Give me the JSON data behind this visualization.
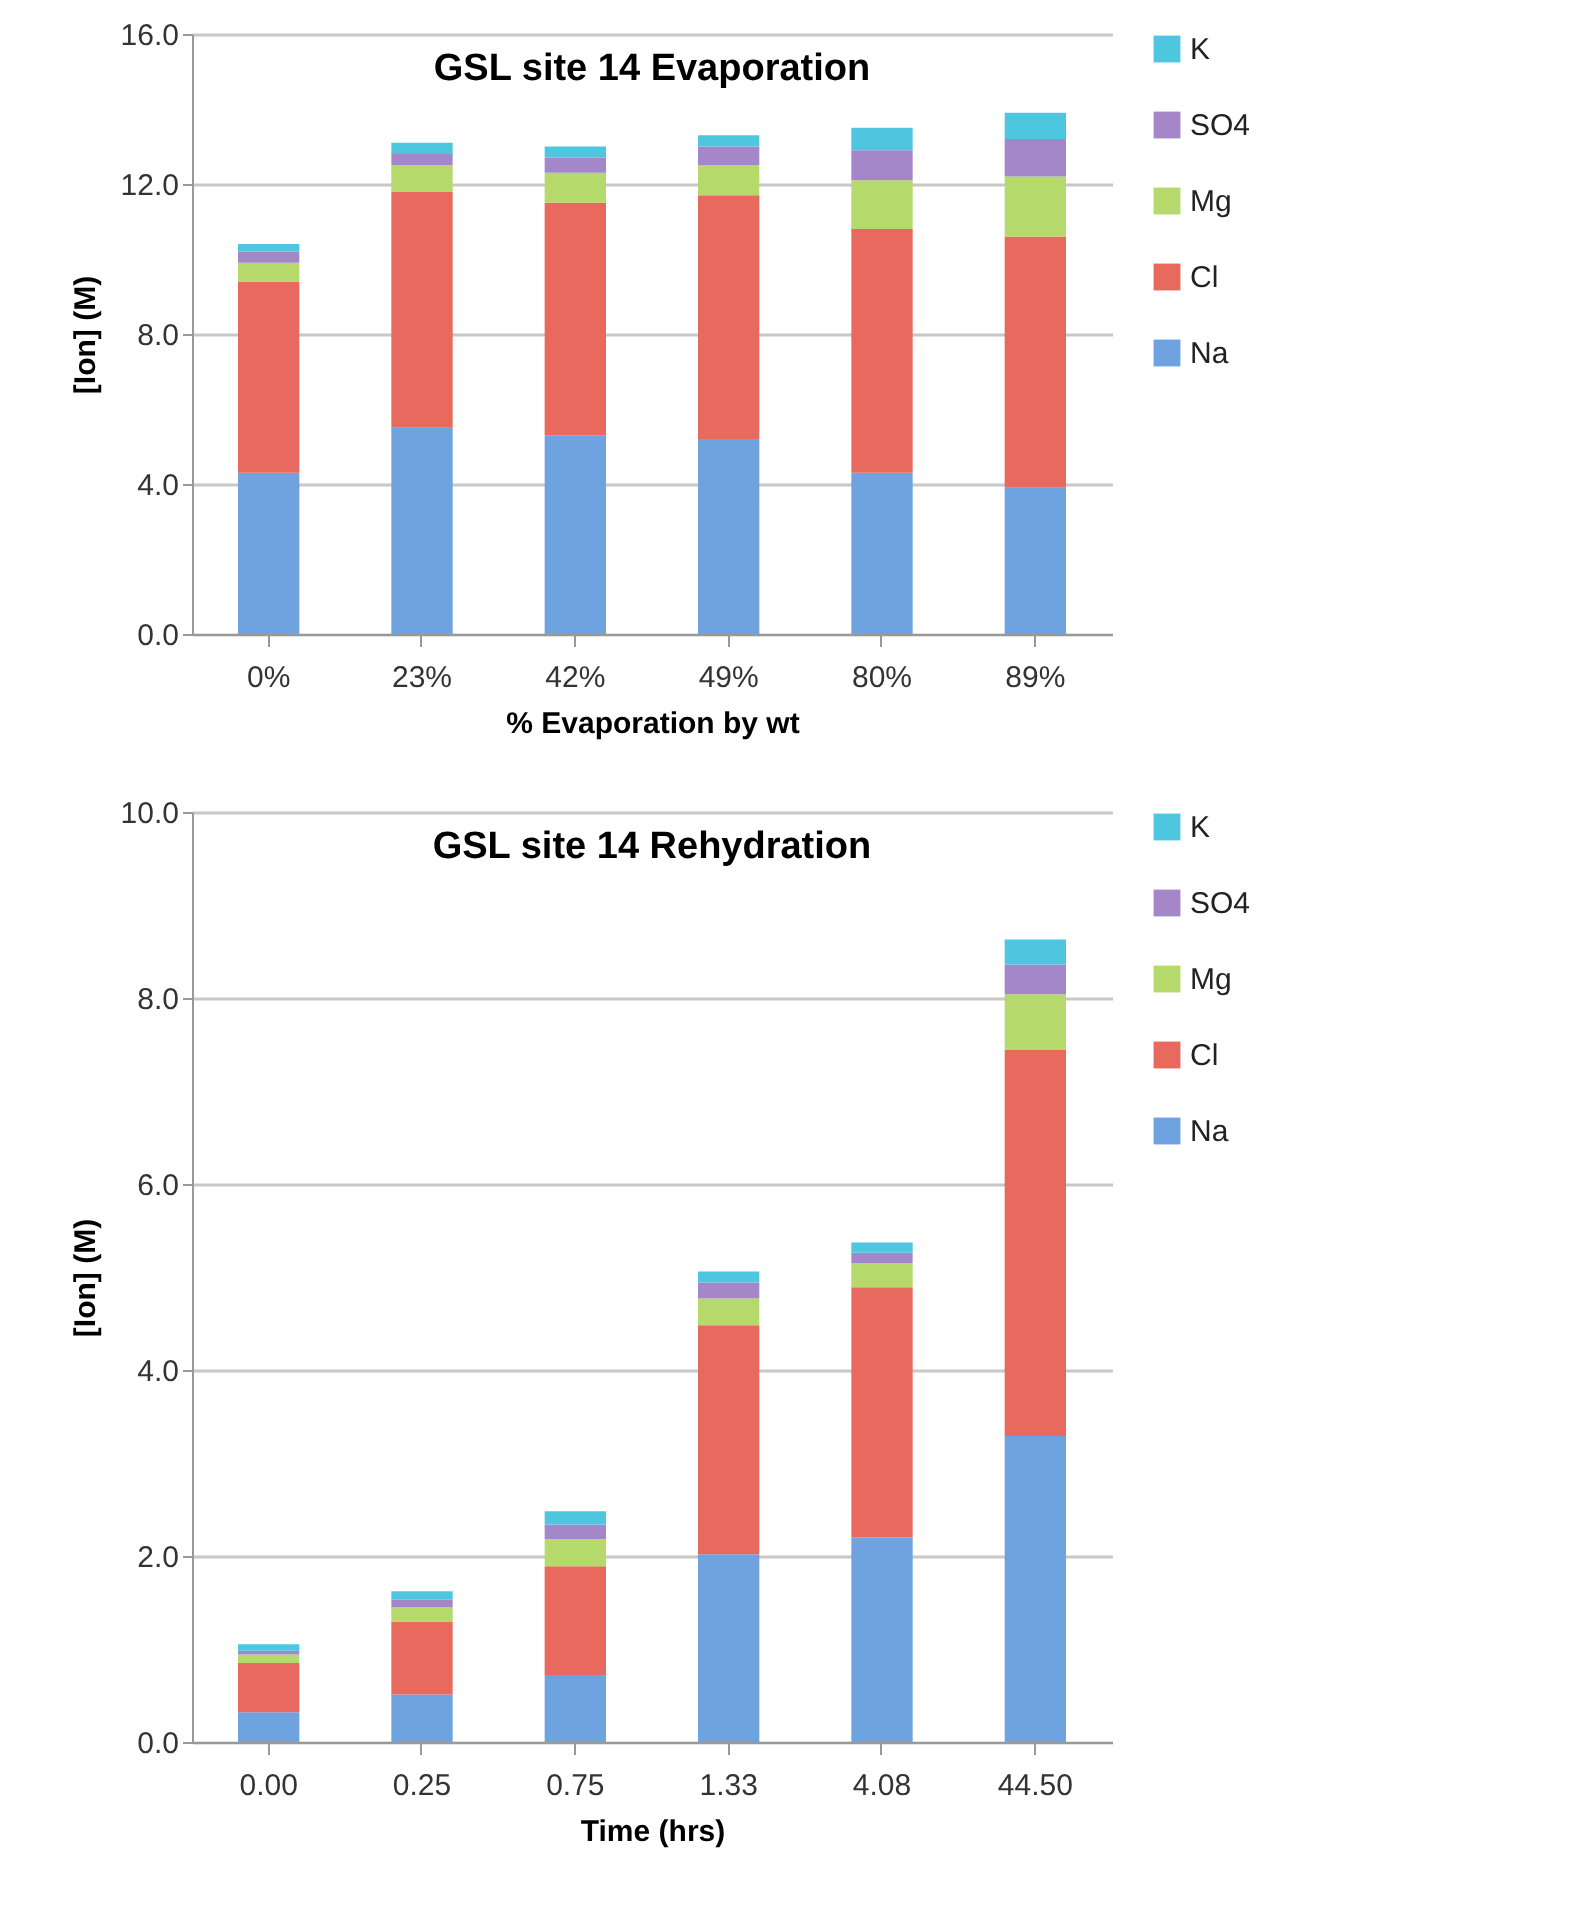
{
  "chart_data": [
    {
      "type": "bar",
      "title": "GSL site 14 Evaporation",
      "xlabel": "% Evaporation by wt",
      "ylabel": "[Ion] (M)",
      "stacked": true,
      "grid": "y",
      "legend": "right",
      "categories": [
        "0%",
        "23%",
        "42%",
        "49%",
        "80%",
        "89%"
      ],
      "ylim": [
        0,
        16
      ],
      "yticks": [
        {
          "value": 0,
          "label": "0.0"
        },
        {
          "value": 4,
          "label": "4.0"
        },
        {
          "value": 8,
          "label": "8.0"
        },
        {
          "value": 12,
          "label": "12.0"
        },
        {
          "value": 16,
          "label": "16.0"
        }
      ],
      "series": [
        {
          "name": "Na",
          "color": "#6fa3e0",
          "values": [
            4.3,
            5.5,
            5.3,
            5.2,
            4.3,
            3.9
          ]
        },
        {
          "name": "Cl",
          "color": "#e8695e",
          "values": [
            5.1,
            6.3,
            6.2,
            6.5,
            6.5,
            6.7
          ]
        },
        {
          "name": "Mg",
          "color": "#b5d96a",
          "values": [
            0.5,
            0.7,
            0.8,
            0.8,
            1.3,
            1.6
          ]
        },
        {
          "name": "SO4",
          "color": "#a487c9",
          "values": [
            0.3,
            0.3,
            0.4,
            0.5,
            0.8,
            1.0
          ]
        },
        {
          "name": "K",
          "color": "#4fc6e0",
          "values": [
            0.2,
            0.3,
            0.3,
            0.3,
            0.6,
            0.7
          ]
        }
      ]
    },
    {
      "type": "bar",
      "title": "GSL site 14 Rehydration",
      "xlabel": "Time (hrs)",
      "ylabel": "[Ion] (M)",
      "stacked": true,
      "grid": "y",
      "legend": "right",
      "categories": [
        "0.00",
        "0.25",
        "0.75",
        "1.33",
        "4.08",
        "44.50"
      ],
      "ylim": [
        0,
        10
      ],
      "yticks": [
        {
          "value": 0,
          "label": "0.0"
        },
        {
          "value": 2,
          "label": "2.0"
        },
        {
          "value": 4,
          "label": "4.0"
        },
        {
          "value": 6,
          "label": "6.0"
        },
        {
          "value": 8,
          "label": "8.0"
        },
        {
          "value": 10,
          "label": "10.0"
        }
      ],
      "series": [
        {
          "name": "Na",
          "color": "#6fa3e0",
          "values": [
            0.32,
            0.51,
            0.72,
            2.02,
            2.2,
            3.29
          ]
        },
        {
          "name": "Cl",
          "color": "#e8695e",
          "values": [
            0.53,
            0.78,
            1.17,
            2.46,
            2.69,
            4.15
          ]
        },
        {
          "name": "Mg",
          "color": "#b5d96a",
          "values": [
            0.09,
            0.16,
            0.29,
            0.29,
            0.26,
            0.6
          ]
        },
        {
          "name": "SO4",
          "color": "#a487c9",
          "values": [
            0.04,
            0.08,
            0.16,
            0.17,
            0.11,
            0.32
          ]
        },
        {
          "name": "K",
          "color": "#4fc6e0",
          "values": [
            0.07,
            0.09,
            0.14,
            0.12,
            0.11,
            0.27
          ]
        }
      ]
    }
  ]
}
